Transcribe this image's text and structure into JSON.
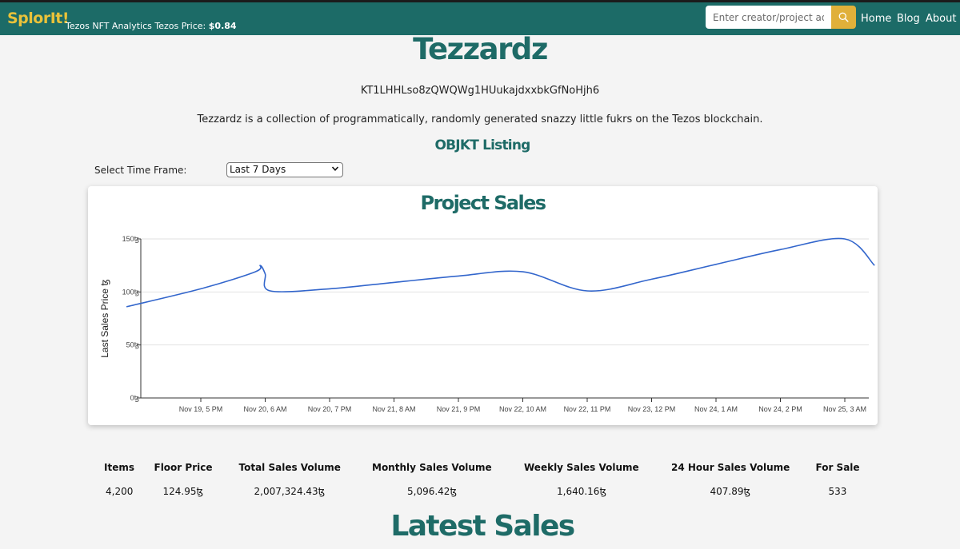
{
  "app": {
    "brand": "SplorIt!",
    "tagline_prefix": "Tezos NFT Analytics Tezos Price: ",
    "tezos_price": "$0.84"
  },
  "search": {
    "placeholder": "Enter creator/project address"
  },
  "nav": {
    "home": "Home",
    "blog": "Blog",
    "about": "About"
  },
  "project": {
    "name": "Tezzardz",
    "contract": "KT1LHHLso8zQWQWg1HUukajdxxbkGfNoHjh6",
    "description": "Tezzardz is a collection of programmatically, randomly generated snazzy little fukrs on the Tezos blockchain.",
    "objkt_link": "OBJKT Listing"
  },
  "timeframe": {
    "label": "Select Time Frame:",
    "selected": "Last 7 Days"
  },
  "chart_title": "Project Sales",
  "chart_data": {
    "type": "line",
    "title": "Project Sales",
    "xlabel": "",
    "ylabel": "Last Sales Price ꜩ",
    "ylim": [
      0,
      150
    ],
    "y_ticks": [
      "0ꜩ",
      "50ꜩ",
      "100ꜩ",
      "150ꜩ"
    ],
    "x_ticks": [
      "Nov 19, 5 PM",
      "Nov 20, 6 AM",
      "Nov 20, 7 PM",
      "Nov 21, 8 AM",
      "Nov 21, 9 PM",
      "Nov 22, 10 AM",
      "Nov 22, 11 PM",
      "Nov 23, 12 PM",
      "Nov 24, 1 AM",
      "Nov 24, 2 PM",
      "Nov 25, 3 AM"
    ],
    "grid": true,
    "series": [
      {
        "color": "#3366cc",
        "x": [
          "Nov 19, 2 AM",
          "Nov 19, 5 PM",
          "Nov 20, 4 AM",
          "Nov 20, 5 AM",
          "Nov 20, 6 AM",
          "Nov 20, 7 AM",
          "Nov 20, 7 PM",
          "Nov 21, 8 AM",
          "Nov 21, 9 PM",
          "Nov 22, 10 AM",
          "Nov 22, 11 PM",
          "Nov 23, 12 PM",
          "Nov 24, 1 AM",
          "Nov 24, 2 PM",
          "Nov 25, 3 AM",
          "Nov 25, 9 AM"
        ],
        "y": [
          86,
          103,
          119,
          125,
          117,
          101,
          103,
          109,
          115,
          119,
          101,
          112,
          126,
          140,
          150,
          125
        ]
      }
    ]
  },
  "stats": {
    "labels": [
      "Items",
      "Floor Price",
      "Total Sales Volume",
      "Monthly Sales Volume",
      "Weekly Sales Volume",
      "24 Hour Sales Volume",
      "For Sale"
    ],
    "values": [
      "4,200",
      "124.95ꜩ",
      "2,007,324.43ꜩ",
      "5,096.42ꜩ",
      "1,640.16ꜩ",
      "407.89ꜩ",
      "533"
    ]
  },
  "latest_heading": "Latest Sales",
  "colors": {
    "brand_teal": "#1c6b67",
    "brand_gold": "#e9c23a",
    "search_button": "#e0b03a",
    "line": "#3366cc"
  },
  "icons": {
    "search": "search-icon",
    "select": "chevron-down-icon"
  }
}
